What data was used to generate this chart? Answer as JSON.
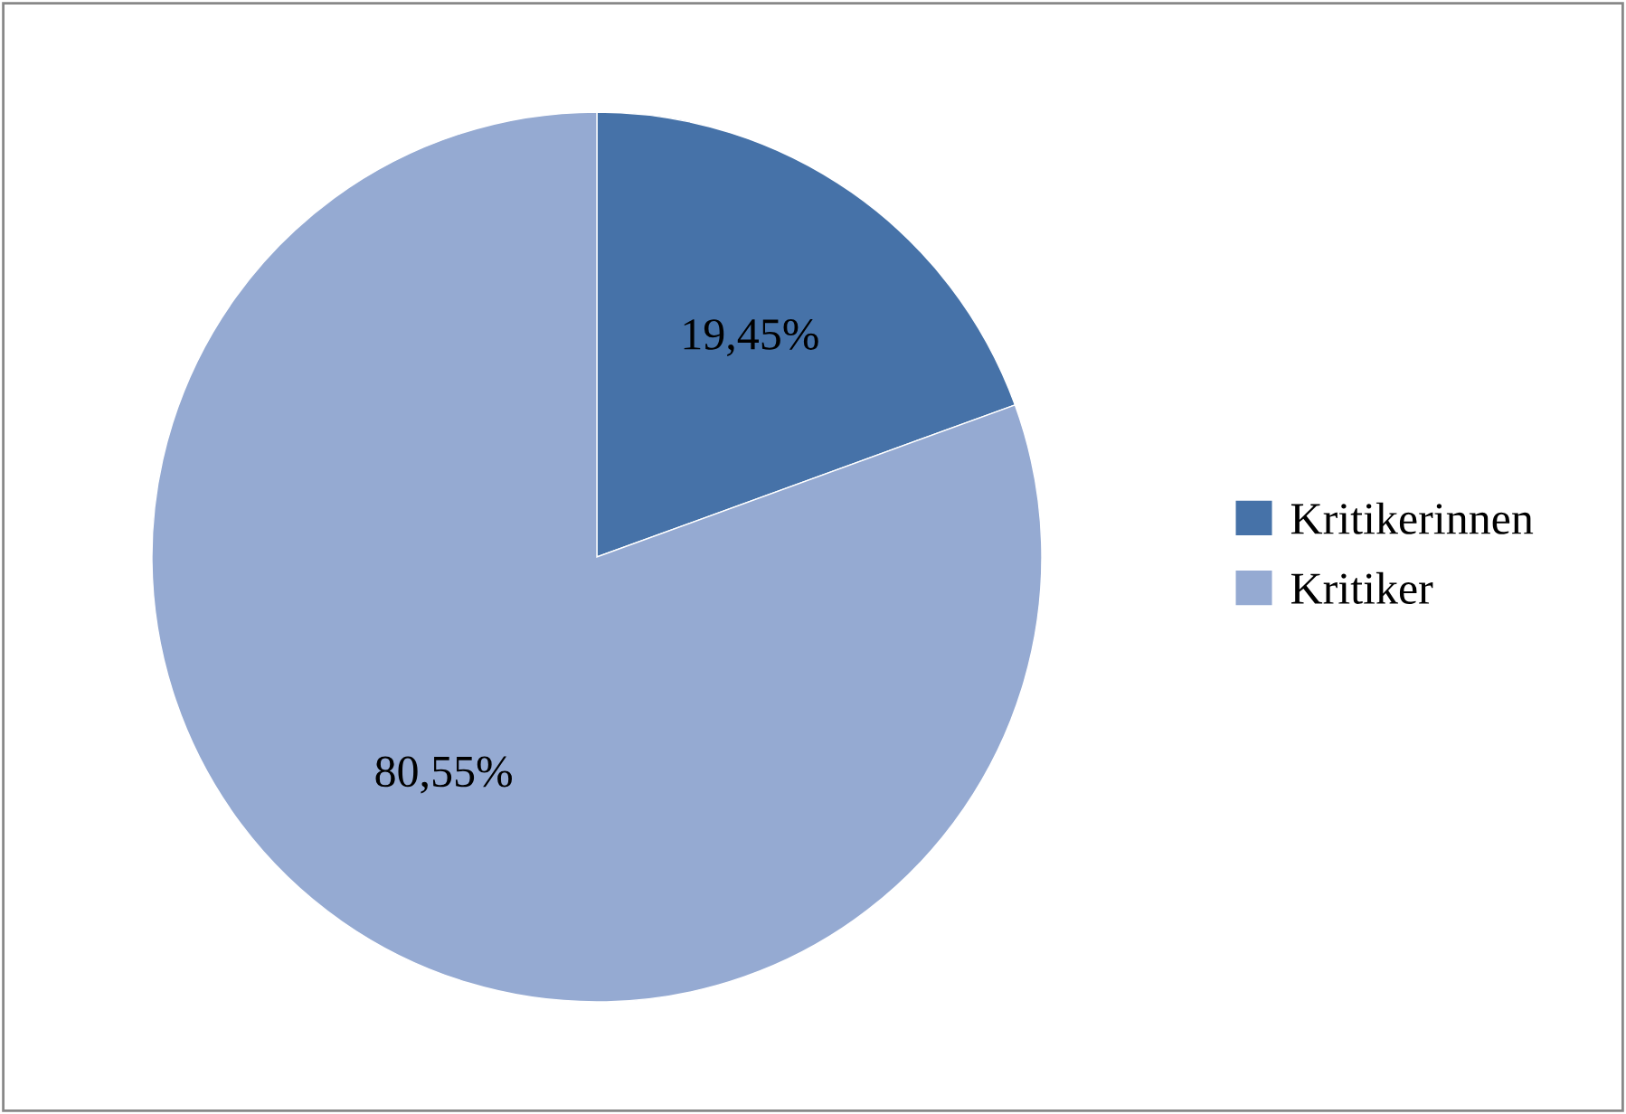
{
  "chart_data": {
    "type": "pie",
    "categories": [
      "Kritikerinnen",
      "Kritiker"
    ],
    "values": [
      19.45,
      80.55
    ],
    "colors": [
      "#4672a8",
      "#95aad2"
    ],
    "value_labels": [
      "19,45%",
      "80,55%"
    ],
    "legend": "right"
  }
}
